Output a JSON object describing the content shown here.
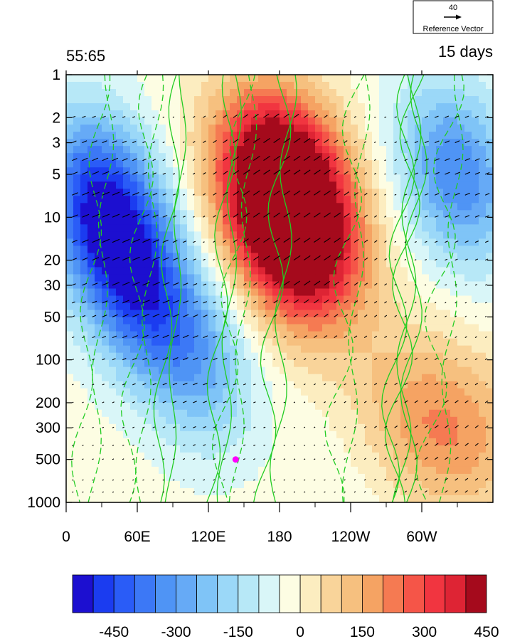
{
  "chart_data": {
    "type": "heatmap",
    "title_left": "55:65",
    "title_right": "15 days",
    "xlabel": "",
    "ylabel": "",
    "x_ticks": [
      "0",
      "60E",
      "120E",
      "180",
      "120W",
      "60W"
    ],
    "x_tick_values": [
      0,
      60,
      120,
      180,
      240,
      300
    ],
    "xlim": [
      0,
      360
    ],
    "y_ticks": [
      "1",
      "2",
      "3",
      "5",
      "10",
      "20",
      "30",
      "50",
      "100",
      "200",
      "300",
      "500",
      "1000"
    ],
    "y_tick_values": [
      1,
      2,
      3,
      5,
      10,
      20,
      30,
      50,
      100,
      200,
      300,
      500,
      1000
    ],
    "ylim": [
      1000,
      1
    ],
    "y_scale": "log",
    "colorbar": {
      "labels": [
        "-450",
        "-300",
        "-150",
        "0",
        "150",
        "300",
        "450"
      ],
      "label_values": [
        -450,
        -300,
        -150,
        0,
        150,
        300,
        450
      ],
      "levels_min": -525,
      "level_step": 50,
      "colors": [
        "#1c0fd0",
        "#1b3cf0",
        "#2a5cf7",
        "#3c78f6",
        "#4f94f5",
        "#66aaf6",
        "#7fc4f7",
        "#9bd8f8",
        "#b7e8f7",
        "#d9f6f8",
        "#fdfde3",
        "#fcedc0",
        "#f9d49a",
        "#f6c07f",
        "#f5a363",
        "#f57a52",
        "#f55548",
        "#f13540",
        "#de2434",
        "#a50a1c"
      ]
    },
    "reference_vector": {
      "value": "40",
      "label": "Reference Vector"
    },
    "marker": {
      "x": 143,
      "y": 500,
      "color": "#ff00ff"
    },
    "field_features": [
      {
        "sign": "positive",
        "x": 180,
        "y": 5,
        "value": 500
      },
      {
        "sign": "positive",
        "x": 195,
        "y": 15,
        "value": 470
      },
      {
        "sign": "positive",
        "x": 280,
        "y": 300,
        "value": 150
      },
      {
        "sign": "positive",
        "x": 335,
        "y": 300,
        "value": 170
      },
      {
        "sign": "negative",
        "x": 30,
        "y": 8,
        "value": -430
      },
      {
        "sign": "negative",
        "x": 60,
        "y": 30,
        "value": -330
      },
      {
        "sign": "negative",
        "x": 330,
        "y": 5,
        "value": -320
      },
      {
        "sign": "negative",
        "x": 110,
        "y": 100,
        "value": -220
      },
      {
        "sign": "negative",
        "x": 260,
        "y": 500,
        "value": -60
      }
    ],
    "contour_lines": {
      "color": "#22cc22",
      "solid_centers_x": [
        85,
        130,
        175,
        280,
        285
      ],
      "dashed_centers_x": [
        20,
        60,
        140,
        235,
        315
      ]
    }
  }
}
